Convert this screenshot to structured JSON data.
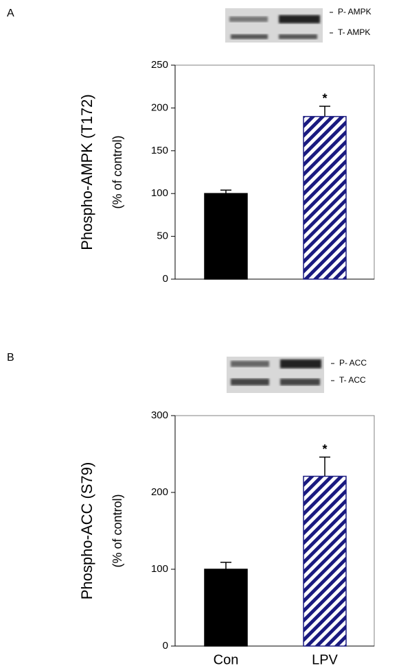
{
  "chart_data": [
    {
      "type": "bar",
      "panel": "A",
      "blot_labels": [
        "P- AMPK",
        "T- AMPK"
      ],
      "ylabel": [
        "Phospho-AMPK (T172)",
        "(% of control)"
      ],
      "categories": [
        null,
        null
      ],
      "values": [
        100,
        190
      ],
      "errors": [
        4,
        12
      ],
      "colors": [
        "#000000",
        "#1a1a80"
      ],
      "patterns": [
        "solid",
        "hatch"
      ],
      "annotation": "*",
      "ylim": [
        0,
        250
      ],
      "yticks": [
        0,
        50,
        100,
        150,
        200,
        250
      ]
    },
    {
      "type": "bar",
      "panel": "B",
      "blot_labels": [
        "P- ACC",
        "T- ACC"
      ],
      "ylabel": [
        "Phospho-ACC (S79)",
        "(% of control)"
      ],
      "categories": [
        "Con",
        "LPV"
      ],
      "values": [
        100,
        221
      ],
      "errors": [
        9,
        25
      ],
      "colors": [
        "#000000",
        "#1a1a80"
      ],
      "patterns": [
        "solid",
        "hatch"
      ],
      "annotation": "*",
      "ylim": [
        0,
        300
      ],
      "yticks": [
        0,
        100,
        200,
        300
      ]
    }
  ]
}
